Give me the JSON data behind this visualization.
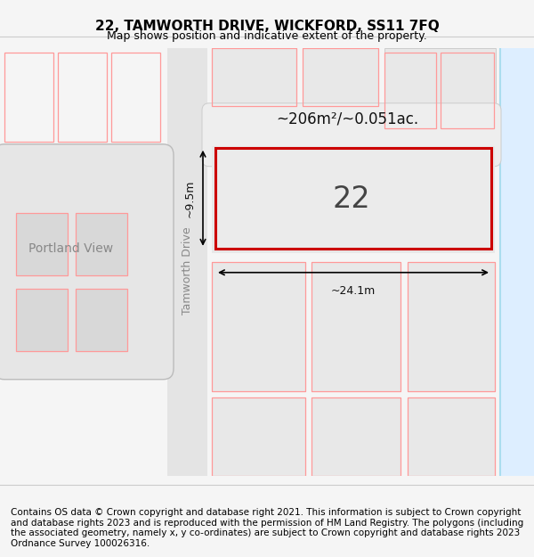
{
  "title_line1": "22, TAMWORTH DRIVE, WICKFORD, SS11 7FQ",
  "title_line2": "Map shows position and indicative extent of the property.",
  "footer_text": "Contains OS data © Crown copyright and database right 2021. This information is subject to Crown copyright and database rights 2023 and is reproduced with the permission of HM Land Registry. The polygons (including the associated geometry, namely x, y co-ordinates) are subject to Crown copyright and database rights 2023 Ordnance Survey 100026316.",
  "area_label": "~206m²/~0.051ac.",
  "number_label": "22",
  "width_label": "~24.1m",
  "height_label": "~9.5m",
  "street_label": "Tamworth Drive",
  "street_label2": "Portland View",
  "bg_color": "#f5f5f5",
  "map_bg": "#ffffff",
  "plot_color": "#e8e8e8",
  "road_color": "#d8d8d8",
  "highlight_color": "#cc0000",
  "pink_line_color": "#ff9999",
  "blue_line_color": "#aaddee",
  "title_fontsize": 11,
  "footer_fontsize": 7.5
}
